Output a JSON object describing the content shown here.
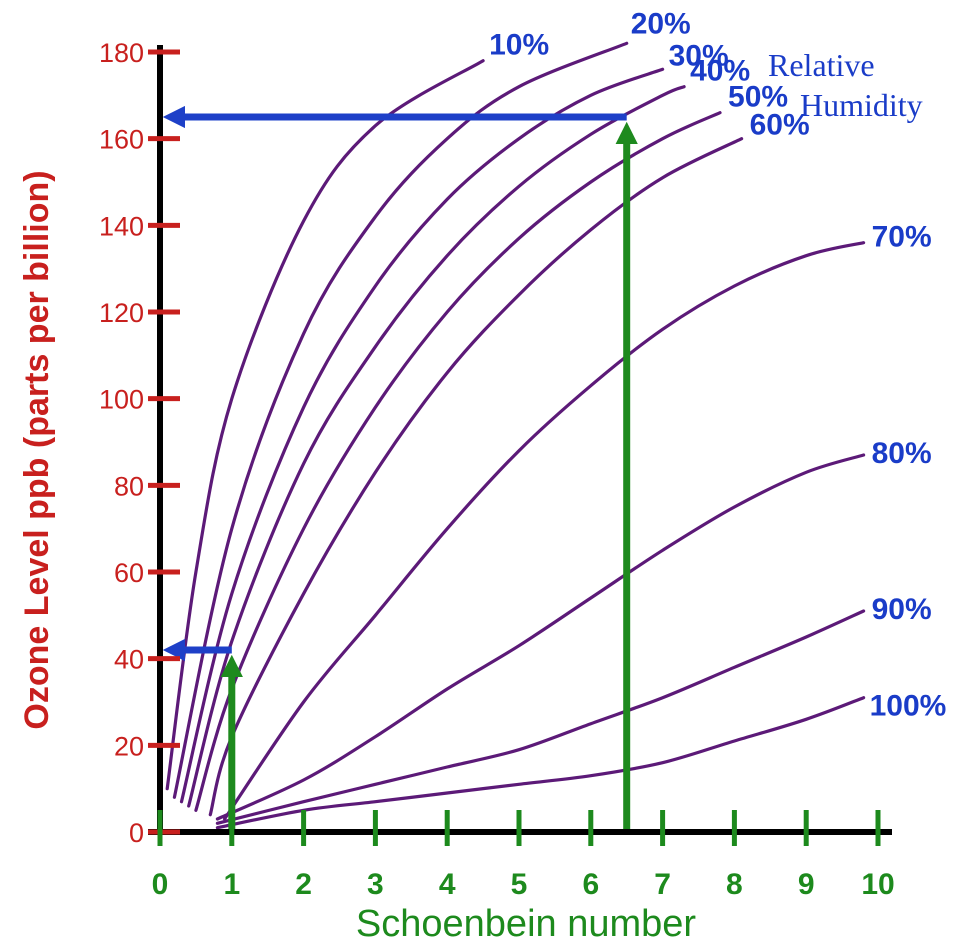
{
  "chart_data": {
    "type": "line",
    "title": "",
    "xlabel": "Schoenbein number",
    "ylabel": "Ozone Level ppb (parts per billion)",
    "legend_title": [
      "Relative",
      "Humidity"
    ],
    "xlim": [
      0,
      10
    ],
    "ylim": [
      0,
      180
    ],
    "x_ticks": [
      0,
      1,
      2,
      3,
      4,
      5,
      6,
      7,
      8,
      9,
      10
    ],
    "y_ticks": [
      0,
      20,
      40,
      60,
      80,
      100,
      120,
      140,
      160,
      180
    ],
    "x_tick_labels": [
      "0",
      "1",
      "2",
      "3",
      "4",
      "5",
      "6",
      "7",
      "8",
      "9",
      "10"
    ],
    "y_tick_labels": [
      "0",
      "20",
      "40",
      "60",
      "80",
      "100",
      "120",
      "140",
      "160",
      "180"
    ],
    "grid": false,
    "legend_placement": "top-right",
    "series": [
      {
        "name": "10%",
        "points": [
          [
            0.1,
            10
          ],
          [
            0.5,
            60
          ],
          [
            1,
            100
          ],
          [
            2,
            141
          ],
          [
            3,
            163
          ],
          [
            4.5,
            178
          ]
        ]
      },
      {
        "name": "20%",
        "points": [
          [
            0.2,
            8
          ],
          [
            1,
            70
          ],
          [
            2,
            115
          ],
          [
            3,
            142
          ],
          [
            4,
            160
          ],
          [
            5,
            172
          ],
          [
            6.5,
            182
          ]
        ]
      },
      {
        "name": "30%",
        "points": [
          [
            0.3,
            7
          ],
          [
            1,
            55
          ],
          [
            2,
            98
          ],
          [
            3,
            126
          ],
          [
            4,
            146
          ],
          [
            5,
            160
          ],
          [
            6,
            170
          ],
          [
            7,
            176
          ]
        ]
      },
      {
        "name": "40%",
        "points": [
          [
            0.4,
            6
          ],
          [
            1,
            44
          ],
          [
            2,
            85
          ],
          [
            3,
            112
          ],
          [
            4,
            133
          ],
          [
            5,
            149
          ],
          [
            6,
            161
          ],
          [
            7,
            170
          ],
          [
            7.3,
            172
          ]
        ]
      },
      {
        "name": "50%",
        "points": [
          [
            0.5,
            5
          ],
          [
            1,
            33
          ],
          [
            2,
            70
          ],
          [
            3,
            98
          ],
          [
            4,
            120
          ],
          [
            5,
            137
          ],
          [
            6,
            150
          ],
          [
            7,
            160
          ],
          [
            7.8,
            166
          ]
        ]
      },
      {
        "name": "60%",
        "points": [
          [
            0.7,
            4
          ],
          [
            1,
            22
          ],
          [
            2,
            55
          ],
          [
            3,
            83
          ],
          [
            4,
            106
          ],
          [
            5,
            124
          ],
          [
            6,
            139
          ],
          [
            7,
            151
          ],
          [
            8.1,
            160
          ]
        ]
      },
      {
        "name": "70%",
        "points": [
          [
            0.9,
            3
          ],
          [
            2,
            30
          ],
          [
            3,
            50
          ],
          [
            4,
            70
          ],
          [
            5,
            88
          ],
          [
            6,
            103
          ],
          [
            7,
            116
          ],
          [
            8,
            126
          ],
          [
            9,
            133
          ],
          [
            9.8,
            136
          ]
        ]
      },
      {
        "name": "80%",
        "points": [
          [
            0.8,
            3
          ],
          [
            2,
            12
          ],
          [
            3,
            22
          ],
          [
            4,
            33
          ],
          [
            5,
            43
          ],
          [
            6,
            54
          ],
          [
            7,
            65
          ],
          [
            8,
            75
          ],
          [
            9,
            83
          ],
          [
            9.8,
            87
          ]
        ]
      },
      {
        "name": "90%",
        "points": [
          [
            0.8,
            2
          ],
          [
            2,
            7
          ],
          [
            3,
            11
          ],
          [
            4,
            15
          ],
          [
            5,
            19
          ],
          [
            6,
            25
          ],
          [
            7,
            31
          ],
          [
            8,
            38
          ],
          [
            9,
            45
          ],
          [
            9.8,
            51
          ]
        ]
      },
      {
        "name": "100%",
        "points": [
          [
            0.8,
            1
          ],
          [
            2,
            5
          ],
          [
            3,
            7
          ],
          [
            4,
            9
          ],
          [
            5,
            11
          ],
          [
            6,
            13
          ],
          [
            7,
            16
          ],
          [
            8,
            21
          ],
          [
            9,
            26
          ],
          [
            9.8,
            31
          ]
        ]
      }
    ],
    "annotations": [
      {
        "type": "arrow",
        "color": "#1e8a1e",
        "from": [
          1,
          0
        ],
        "to": [
          1,
          42
        ]
      },
      {
        "type": "arrow",
        "color": "#1e40c8",
        "from": [
          1,
          42
        ],
        "to": [
          0,
          42
        ]
      },
      {
        "type": "arrow",
        "color": "#1e8a1e",
        "from": [
          6.5,
          0
        ],
        "to": [
          6.5,
          165
        ]
      },
      {
        "type": "arrow",
        "color": "#1e40c8",
        "from": [
          6.5,
          165
        ],
        "to": [
          0,
          165
        ]
      }
    ]
  },
  "colors": {
    "curve": "#5c1a78",
    "axis": "#000000",
    "ytick": "#c8201e",
    "xtick": "#1d8a1d",
    "rh_label": "#1a3cc8"
  }
}
